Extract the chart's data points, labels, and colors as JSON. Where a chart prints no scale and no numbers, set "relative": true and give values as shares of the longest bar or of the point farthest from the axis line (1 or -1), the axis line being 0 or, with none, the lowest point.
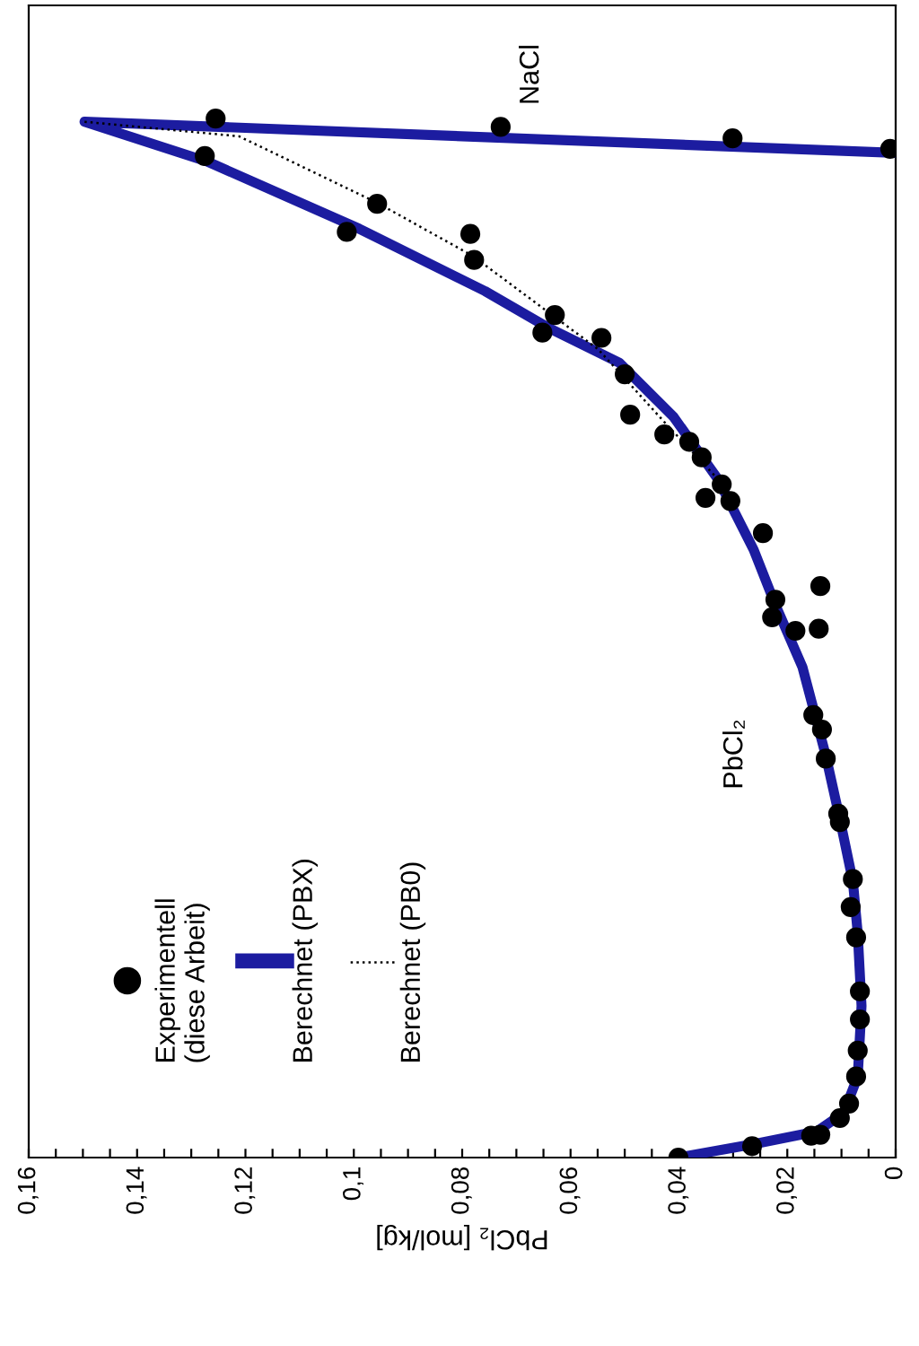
{
  "chart_data": {
    "type": "scatter",
    "xlabel": "PbCl₂ [mol/kg]",
    "relative": true,
    "xlim": [
      0.16,
      0
    ],
    "xticks": [
      {
        "value": 0.16,
        "label": "0,16"
      },
      {
        "value": 0.155,
        "label": null
      },
      {
        "value": 0.15,
        "label": null
      },
      {
        "value": 0.145,
        "label": null
      },
      {
        "value": 0.14,
        "label": "0,14"
      },
      {
        "value": 0.135,
        "label": null
      },
      {
        "value": 0.13,
        "label": null
      },
      {
        "value": 0.125,
        "label": null
      },
      {
        "value": 0.12,
        "label": "0,12"
      },
      {
        "value": 0.115,
        "label": null
      },
      {
        "value": 0.11,
        "label": null
      },
      {
        "value": 0.105,
        "label": null
      },
      {
        "value": 0.1,
        "label": "0,1"
      },
      {
        "value": 0.095,
        "label": null
      },
      {
        "value": 0.09,
        "label": null
      },
      {
        "value": 0.085,
        "label": null
      },
      {
        "value": 0.08,
        "label": "0,08"
      },
      {
        "value": 0.075,
        "label": null
      },
      {
        "value": 0.07,
        "label": null
      },
      {
        "value": 0.065,
        "label": null
      },
      {
        "value": 0.06,
        "label": "0,06"
      },
      {
        "value": 0.055,
        "label": null
      },
      {
        "value": 0.05,
        "label": null
      },
      {
        "value": 0.045,
        "label": null
      },
      {
        "value": 0.04,
        "label": "0,04"
      },
      {
        "value": 0.035,
        "label": null
      },
      {
        "value": 0.03,
        "label": null
      },
      {
        "value": 0.025,
        "label": null
      },
      {
        "value": 0.02,
        "label": "0,02"
      },
      {
        "value": 0.015,
        "label": null
      },
      {
        "value": 0.01,
        "label": null
      },
      {
        "value": 0.005,
        "label": null
      },
      0
    ],
    "grid": false,
    "legend": "left",
    "series": [
      {
        "name": "Experimentell\n(diese Arbeit)",
        "marker": "circle",
        "color": "#000000",
        "x": [
          0.1255,
          0.0729,
          0.0301,
          0.001,
          0.1275,
          0.0957,
          0.1013,
          0.0785,
          0.0778,
          0.0629,
          0.0652,
          0.0543,
          0.05,
          0.049,
          0.0427,
          0.0381,
          0.0358,
          0.0321,
          0.0351,
          0.0305,
          0.0245,
          0.0139,
          0.0222,
          0.0228,
          0.0142,
          0.0185,
          0.0152,
          0.0136,
          0.0129,
          0.0106,
          0.0103,
          0.0079,
          0.0083,
          0.0073,
          0.0066,
          0.0066,
          0.007,
          0.0073,
          0.0086,
          0.0103,
          0.0139,
          0.0156,
          0.0265,
          0.0401
        ],
        "values": [
          1.0,
          0.992,
          0.981,
          0.971,
          0.964,
          0.918,
          0.891,
          0.889,
          0.864,
          0.811,
          0.794,
          0.789,
          0.754,
          0.715,
          0.696,
          0.689,
          0.674,
          0.648,
          0.635,
          0.632,
          0.601,
          0.55,
          0.537,
          0.52,
          0.509,
          0.507,
          0.426,
          0.412,
          0.384,
          0.331,
          0.323,
          0.268,
          0.241,
          0.212,
          0.16,
          0.133,
          0.103,
          0.078,
          0.052,
          0.038,
          0.022,
          0.021,
          0.011,
          0.0
        ]
      },
      {
        "name": "Berechnet (PBX)",
        "type": "line",
        "marker": "none",
        "line_style": "solid",
        "color": "#1c1ca0",
        "x": [
          0.0401,
          0.0262,
          0.0146,
          0.0096,
          0.007,
          0.0063,
          0.007,
          0.0079,
          0.0103,
          0.0129,
          0.0172,
          0.0222,
          0.0262,
          0.0328,
          0.041,
          0.051,
          0.0642,
          0.0758,
          0.099,
          0.1272,
          0.1497,
          0.0
        ],
        "values": [
          0.0,
          0.013,
          0.025,
          0.043,
          0.078,
          0.146,
          0.216,
          0.266,
          0.326,
          0.387,
          0.472,
          0.532,
          0.585,
          0.653,
          0.713,
          0.765,
          0.799,
          0.834,
          0.894,
          0.959,
          0.997,
          0.967
        ]
      },
      {
        "name": "Berechnet (PB0)",
        "type": "line",
        "marker": "none",
        "line_style": "dotted",
        "color": "#000000",
        "x": [
          0.1497,
          0.1212,
          0.0957,
          0.0781,
          0.0549,
          0.0427,
          0.0328
        ],
        "values": [
          0.997,
          0.983,
          0.919,
          0.868,
          0.778,
          0.708,
          0.653
        ]
      }
    ],
    "annotations": [
      "NaCl",
      "PbCl₂"
    ]
  }
}
